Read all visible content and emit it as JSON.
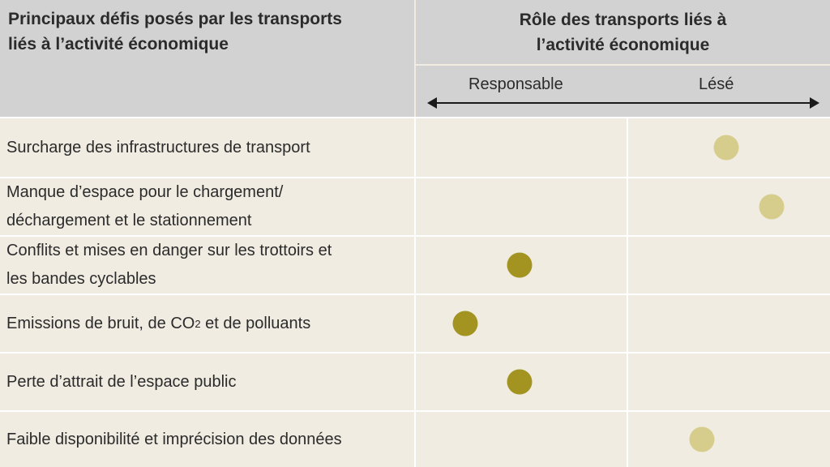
{
  "header": {
    "left_title": "Principaux défis posés par les transports\nliés à l’activité économique",
    "right_title": "Rôle des transports liés à\nl’activité économique",
    "axis_left": "Responsable",
    "axis_right": "Lésé"
  },
  "colors": {
    "dark_dot": "#a39422",
    "light_dot": "#d6cd8c",
    "header_bg": "#d2d2d2",
    "body_bg": "#f0ece2"
  },
  "rows": [
    {
      "label": "Surcharge des infrastructures de transport",
      "position": 0.75,
      "shade": "light"
    },
    {
      "label": "Manque d’espace pour le chargement/\ndéchargement et le stationnement",
      "position": 0.86,
      "shade": "light"
    },
    {
      "label": "Conflits et mises en danger sur les trottoirs et\nles bandes cyclables",
      "position": 0.25,
      "shade": "dark"
    },
    {
      "label_pre": "Emissions de bruit, de CO",
      "label_sub": "2",
      "label_post": " et de polluants",
      "position": 0.12,
      "shade": "dark"
    },
    {
      "label": "Perte d’attrait de l’espace public",
      "position": 0.25,
      "shade": "dark"
    },
    {
      "label": "Faible disponibilité et imprécision des données",
      "position": 0.69,
      "shade": "light"
    }
  ]
}
